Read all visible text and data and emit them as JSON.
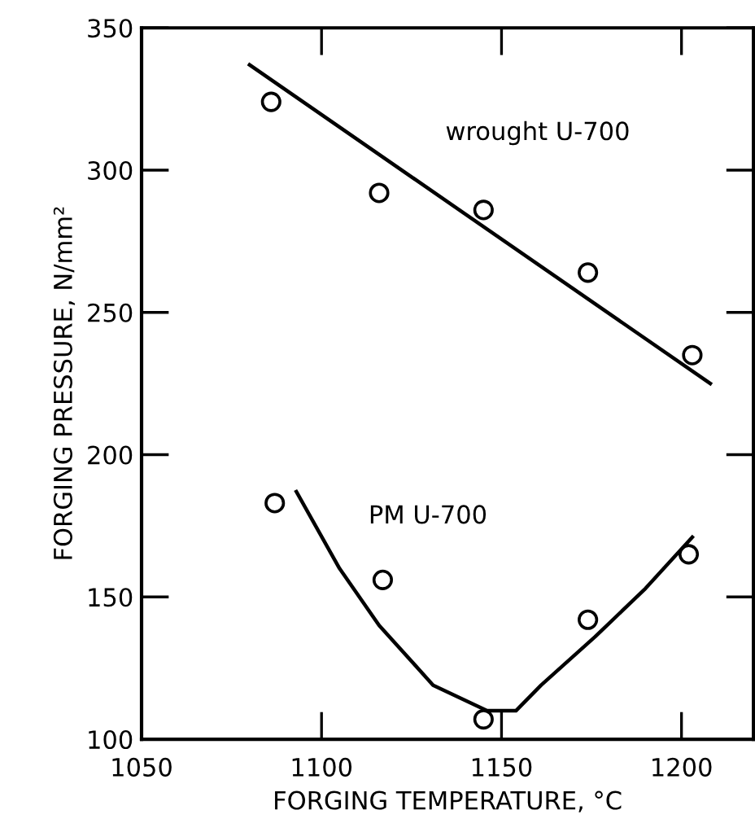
{
  "chart_data": {
    "type": "scatter",
    "xlabel": "FORGING TEMPERATURE, °C",
    "ylabel": "FORGING PRESSURE, N/mm²",
    "xlim": [
      1050,
      1220
    ],
    "ylim": [
      100,
      350
    ],
    "xticks": [
      1050,
      1100,
      1150,
      1200
    ],
    "yticks": [
      100,
      150,
      200,
      250,
      300,
      350
    ],
    "grid": false,
    "series": [
      {
        "name": "wrought U-700",
        "marker": "circle",
        "color": "#000000",
        "x": [
          1086,
          1116,
          1145,
          1174,
          1203
        ],
        "values": [
          324,
          292,
          286,
          264,
          235
        ]
      },
      {
        "type": "line",
        "marker": "none",
        "color": "#000000",
        "x": [
          1080,
          1208
        ],
        "values": [
          337,
          225
        ]
      },
      {
        "name": "PM U-700",
        "marker": "circle",
        "color": "#000000",
        "x": [
          1087,
          1117,
          1145,
          1174,
          1202
        ],
        "values": [
          183,
          156,
          107,
          142,
          165
        ]
      },
      {
        "type": "line",
        "marker": "none",
        "color": "#000000",
        "x": [
          1093,
          1105,
          1116,
          1131,
          1146,
          1154,
          1161,
          1176,
          1190,
          1203
        ],
        "values": [
          187,
          160,
          140,
          119,
          110,
          110,
          119,
          136,
          153,
          171
        ]
      }
    ]
  }
}
